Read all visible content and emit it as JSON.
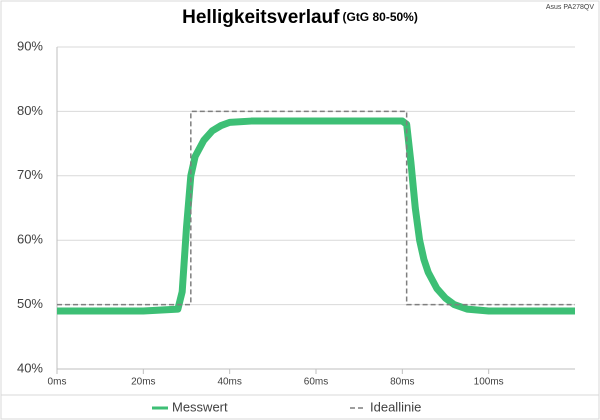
{
  "chart_data": {
    "type": "line",
    "title": "Helligkeitsverlauf",
    "subtitle": "(GtG 80-50%)",
    "annotation": "Asus PA278QV",
    "xlim": [
      0,
      120
    ],
    "xticks": [
      {
        "value": 0,
        "label": "0ms"
      },
      {
        "value": 20,
        "label": "20ms"
      },
      {
        "value": 40,
        "label": "40ms"
      },
      {
        "value": 60,
        "label": "60ms"
      },
      {
        "value": 80,
        "label": "80ms"
      },
      {
        "value": 100,
        "label": "100ms"
      }
    ],
    "ylim": [
      40,
      90
    ],
    "yticks": [
      {
        "value": 40,
        "label": "40%"
      },
      {
        "value": 50,
        "label": "50%"
      },
      {
        "value": 60,
        "label": "60%"
      },
      {
        "value": 70,
        "label": "70%"
      },
      {
        "value": 80,
        "label": "80%"
      },
      {
        "value": 90,
        "label": "90%"
      }
    ],
    "grid": true,
    "legend": "bottom",
    "series": [
      {
        "name": "Messwert",
        "color": "#3dbf75",
        "dash": false,
        "x": [
          0,
          10,
          20,
          28,
          29,
          30,
          31,
          32,
          34,
          36,
          38,
          40,
          45,
          60,
          80,
          81,
          82,
          83,
          84,
          85,
          86,
          88,
          90,
          92,
          95,
          100,
          110,
          120
        ],
        "values": [
          49,
          49,
          49,
          49.3,
          52,
          62,
          70,
          73,
          75.5,
          77,
          77.8,
          78.3,
          78.5,
          78.5,
          78.5,
          78,
          72,
          65,
          60,
          57,
          55,
          52.5,
          51,
          50,
          49.3,
          49,
          49,
          49
        ]
      },
      {
        "name": "Ideallinie",
        "color": "#7f7f7f",
        "dash": true,
        "x": [
          0,
          31,
          31,
          81,
          81,
          120
        ],
        "values": [
          50,
          50,
          80,
          80,
          50,
          50
        ]
      }
    ]
  }
}
